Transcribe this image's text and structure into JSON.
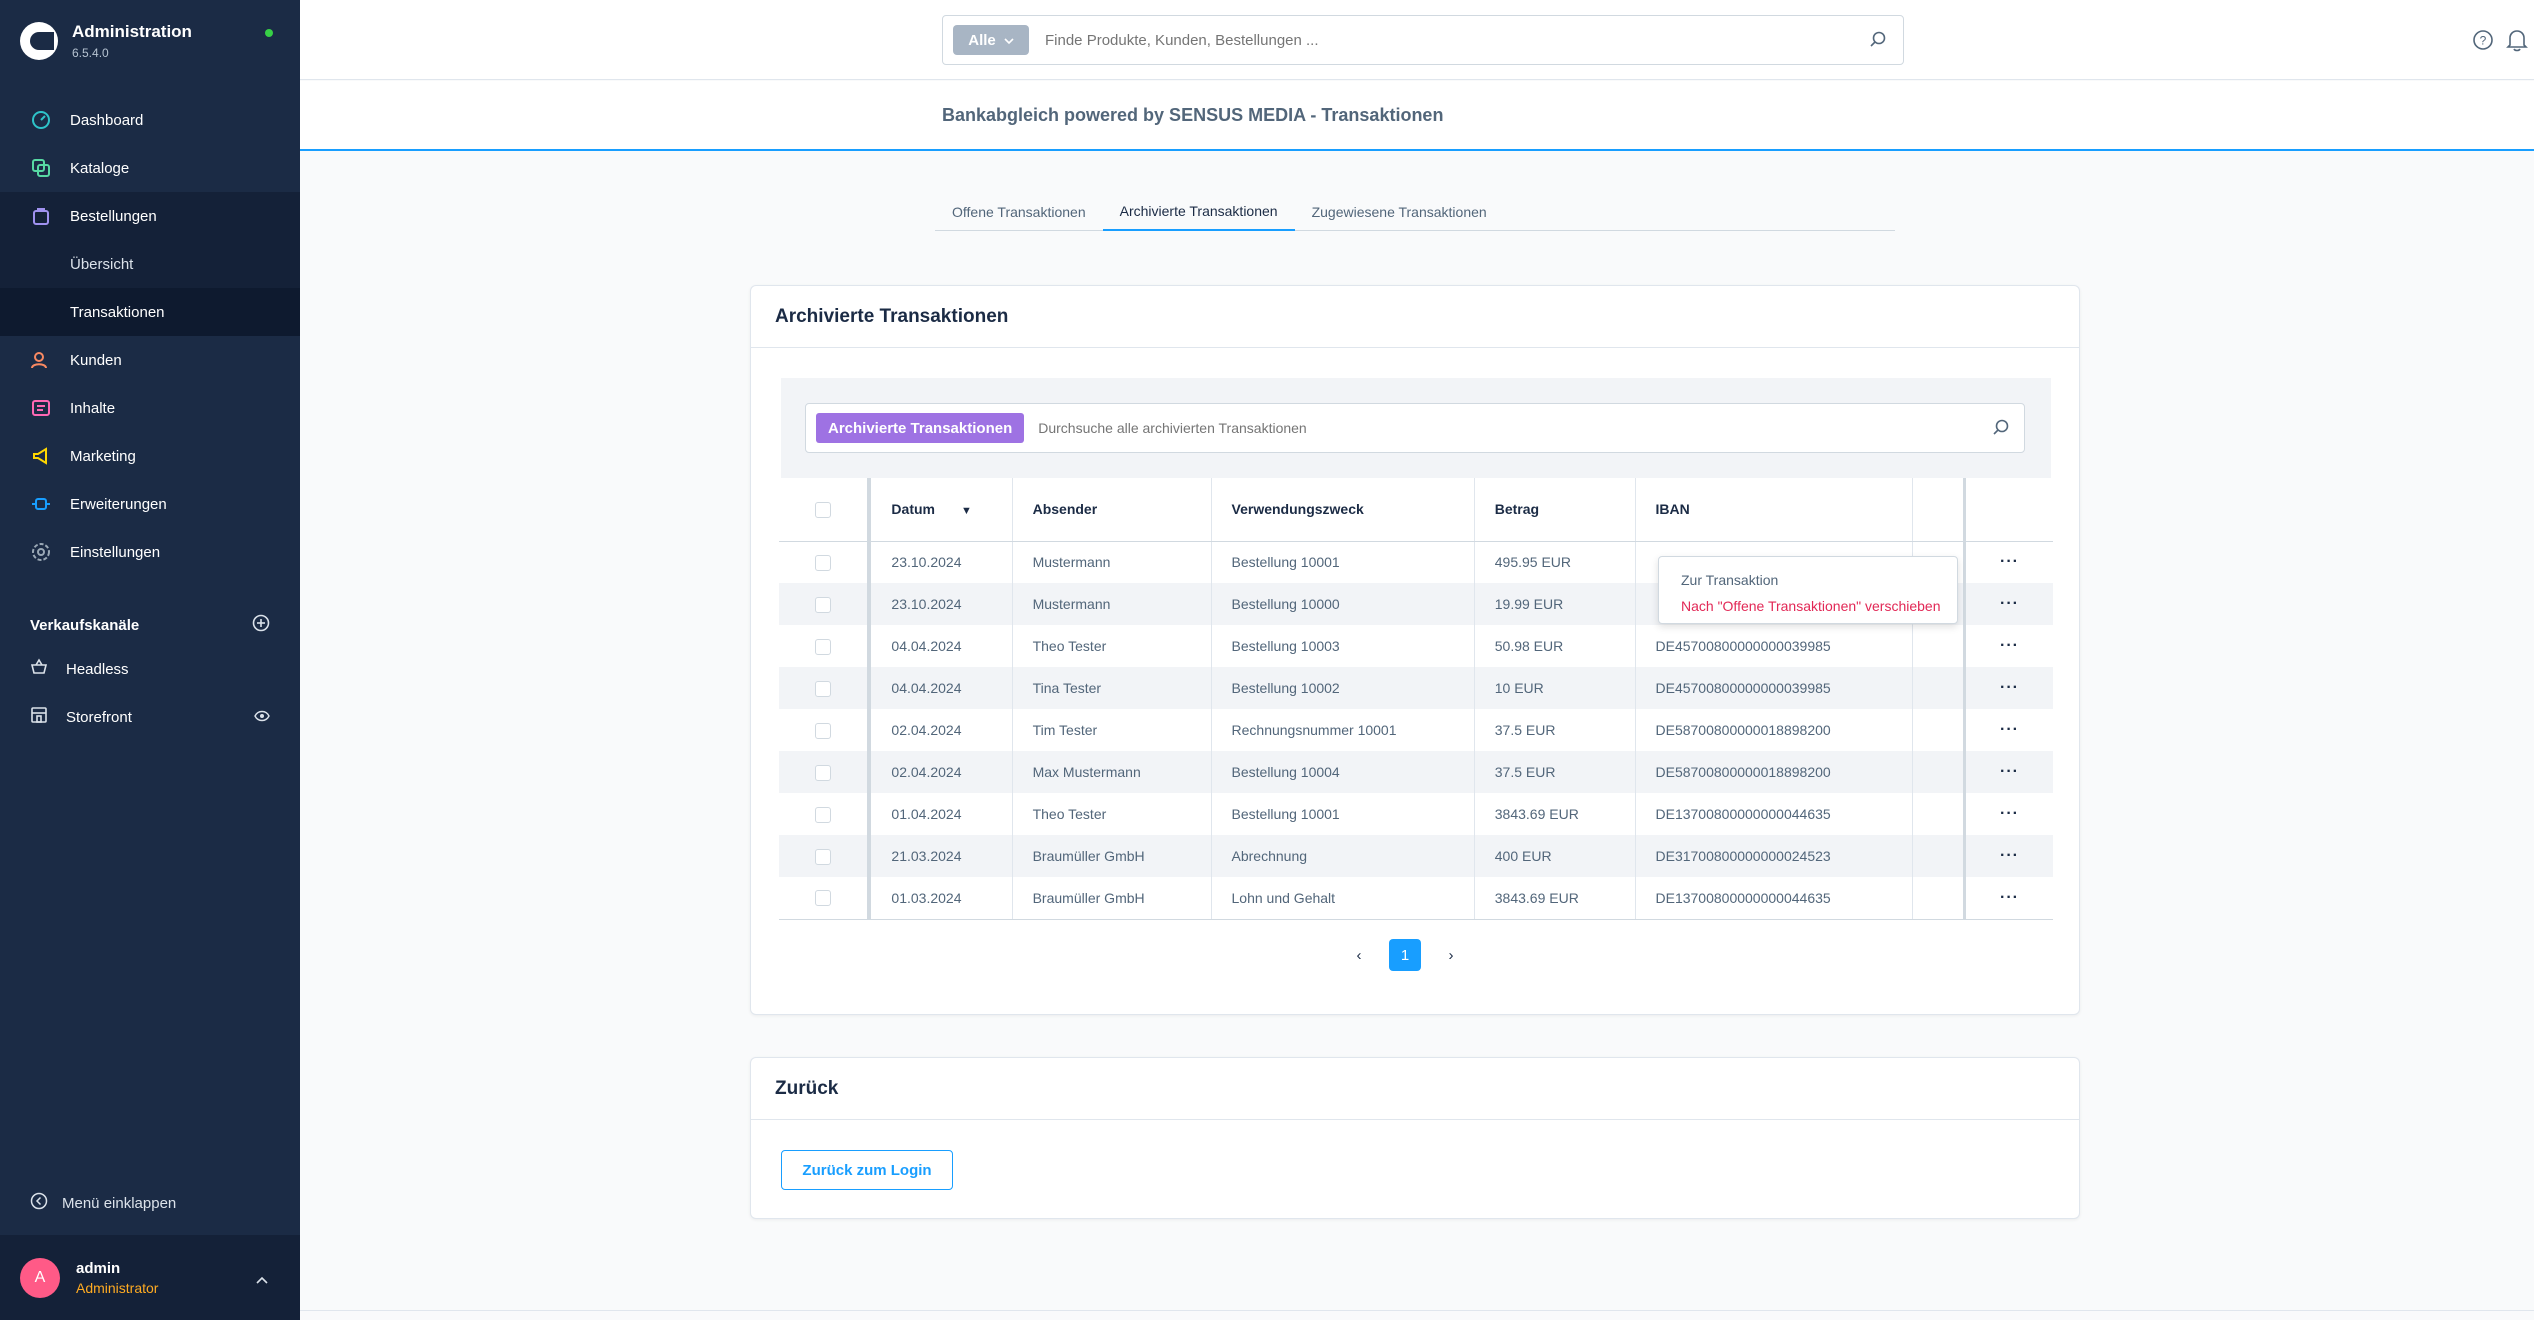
{
  "app": {
    "title": "Administration",
    "version": "6.5.4.0"
  },
  "sidebar": {
    "items": [
      {
        "label": "Dashboard",
        "icon": "dashboard-icon",
        "color": "#2ec3c9"
      },
      {
        "label": "Kataloge",
        "icon": "catalog-icon",
        "color": "#57d9a3"
      },
      {
        "label": "Bestellungen",
        "icon": "orders-icon",
        "color": "#a092f0"
      },
      {
        "label": "Kunden",
        "icon": "customers-icon",
        "color": "#f88962"
      },
      {
        "label": "Inhalte",
        "icon": "content-icon",
        "color": "#ff68b4"
      },
      {
        "label": "Marketing",
        "icon": "marketing-icon",
        "color": "#ffd700"
      },
      {
        "label": "Erweiterungen",
        "icon": "extensions-icon",
        "color": "#189eff"
      },
      {
        "label": "Einstellungen",
        "icon": "settings-icon",
        "color": "#9aa8b5"
      }
    ],
    "sub_items": [
      "Übersicht",
      "Transaktionen"
    ],
    "sales_channels_title": "Verkaufskanäle",
    "sales_channels": [
      "Headless",
      "Storefront"
    ],
    "collapse_label": "Menü einklappen",
    "user": {
      "initial": "A",
      "name": "admin",
      "role": "Administrator"
    }
  },
  "search": {
    "type_label": "Alle",
    "placeholder": "Finde Produkte, Kunden, Bestellungen ..."
  },
  "page": {
    "title": "Bankabgleich powered by SENSUS MEDIA - Transaktionen"
  },
  "tabs": [
    "Offene Transaktionen",
    "Archivierte Transaktionen",
    "Zugewiesene Transaktionen"
  ],
  "archived": {
    "card_title": "Archivierte Transaktionen",
    "search_tag": "Archivierte Transaktionen",
    "search_placeholder": "Durchsuche alle archivierten Transaktionen",
    "columns": [
      "Datum",
      "Absender",
      "Verwendungszweck",
      "Betrag",
      "IBAN"
    ],
    "rows": [
      [
        "23.10.2024",
        "Mustermann",
        "Bestellung 10001",
        "495.95 EUR",
        ""
      ],
      [
        "23.10.2024",
        "Mustermann",
        "Bestellung 10000",
        "19.99 EUR",
        ""
      ],
      [
        "04.04.2024",
        "Theo Tester",
        "Bestellung 10003",
        "50.98 EUR",
        "DE45700800000000039985"
      ],
      [
        "04.04.2024",
        "Tina Tester",
        "Bestellung 10002",
        "10 EUR",
        "DE45700800000000039985"
      ],
      [
        "02.04.2024",
        "Tim Tester",
        "Rechnungsnummer 10001",
        "37.5 EUR",
        "DE58700800000018898200"
      ],
      [
        "02.04.2024",
        "Max Mustermann",
        "Bestellung 10004",
        "37.5 EUR",
        "DE58700800000018898200"
      ],
      [
        "01.04.2024",
        "Theo Tester",
        "Bestellung 10001",
        "3843.69 EUR",
        "DE13700800000000044635"
      ],
      [
        "21.03.2024",
        "Braumüller GmbH",
        "Abrechnung",
        "400 EUR",
        "DE31700800000000024523"
      ],
      [
        "01.03.2024",
        "Braumüller GmbH",
        "Lohn und Gehalt",
        "3843.69 EUR",
        "DE13700800000000044635"
      ]
    ],
    "context_menu": [
      "Zur Transaktion",
      "Nach \"Offene Transaktionen\" verschieben"
    ],
    "current_page": "1"
  },
  "back": {
    "card_title": "Zurück",
    "button_label": "Zurück zum Login"
  }
}
